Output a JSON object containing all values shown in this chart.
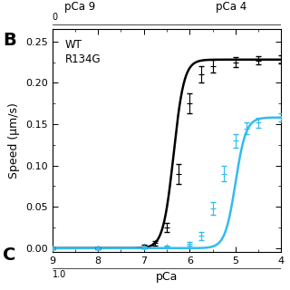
{
  "title_label": "B",
  "xlabel": "pCa",
  "ylabel": "Speed (μm/s)",
  "xlim": [
    9,
    4
  ],
  "ylim": [
    -0.005,
    0.265
  ],
  "yticks": [
    0,
    0.05,
    0.1,
    0.15,
    0.2,
    0.25
  ],
  "xticks": [
    9,
    8,
    7,
    6,
    5,
    4
  ],
  "legend_labels": [
    "WT",
    "R134G"
  ],
  "legend_colors": [
    "black",
    "#33bbee"
  ],
  "wt_hill": {
    "vmax": 0.228,
    "ec50_pca": 6.35,
    "hill": 3.8
  },
  "r134g_hill": {
    "vmax": 0.158,
    "ec50_pca": 5.0,
    "hill": 3.8
  },
  "wt_data_x": [
    9.0,
    8.0,
    7.0,
    6.75,
    6.5,
    6.25,
    6.0,
    5.75,
    5.5,
    5.0,
    4.5,
    4.0
  ],
  "wt_data_y": [
    0.0,
    0.0,
    0.002,
    0.006,
    0.025,
    0.09,
    0.175,
    0.21,
    0.22,
    0.225,
    0.227,
    0.228
  ],
  "wt_data_yerr": [
    0.001,
    0.001,
    0.002,
    0.003,
    0.006,
    0.012,
    0.012,
    0.01,
    0.008,
    0.006,
    0.005,
    0.005
  ],
  "r134g_data_x": [
    9.0,
    8.0,
    7.0,
    6.5,
    6.0,
    5.75,
    5.5,
    5.25,
    5.0,
    4.75,
    4.5,
    4.0
  ],
  "r134g_data_y": [
    0.0,
    0.0,
    0.001,
    0.002,
    0.005,
    0.015,
    0.048,
    0.09,
    0.13,
    0.145,
    0.152,
    0.158
  ],
  "r134g_data_yerr": [
    0.001,
    0.001,
    0.001,
    0.001,
    0.002,
    0.005,
    0.008,
    0.009,
    0.008,
    0.007,
    0.006,
    0.005
  ],
  "line_color_wt": "black",
  "line_color_r134g": "#33bbee",
  "bg_color": "white",
  "panel_a_bar_color": "#33bbee",
  "fig_width": 3.2,
  "fig_height": 3.2,
  "dpi": 100
}
